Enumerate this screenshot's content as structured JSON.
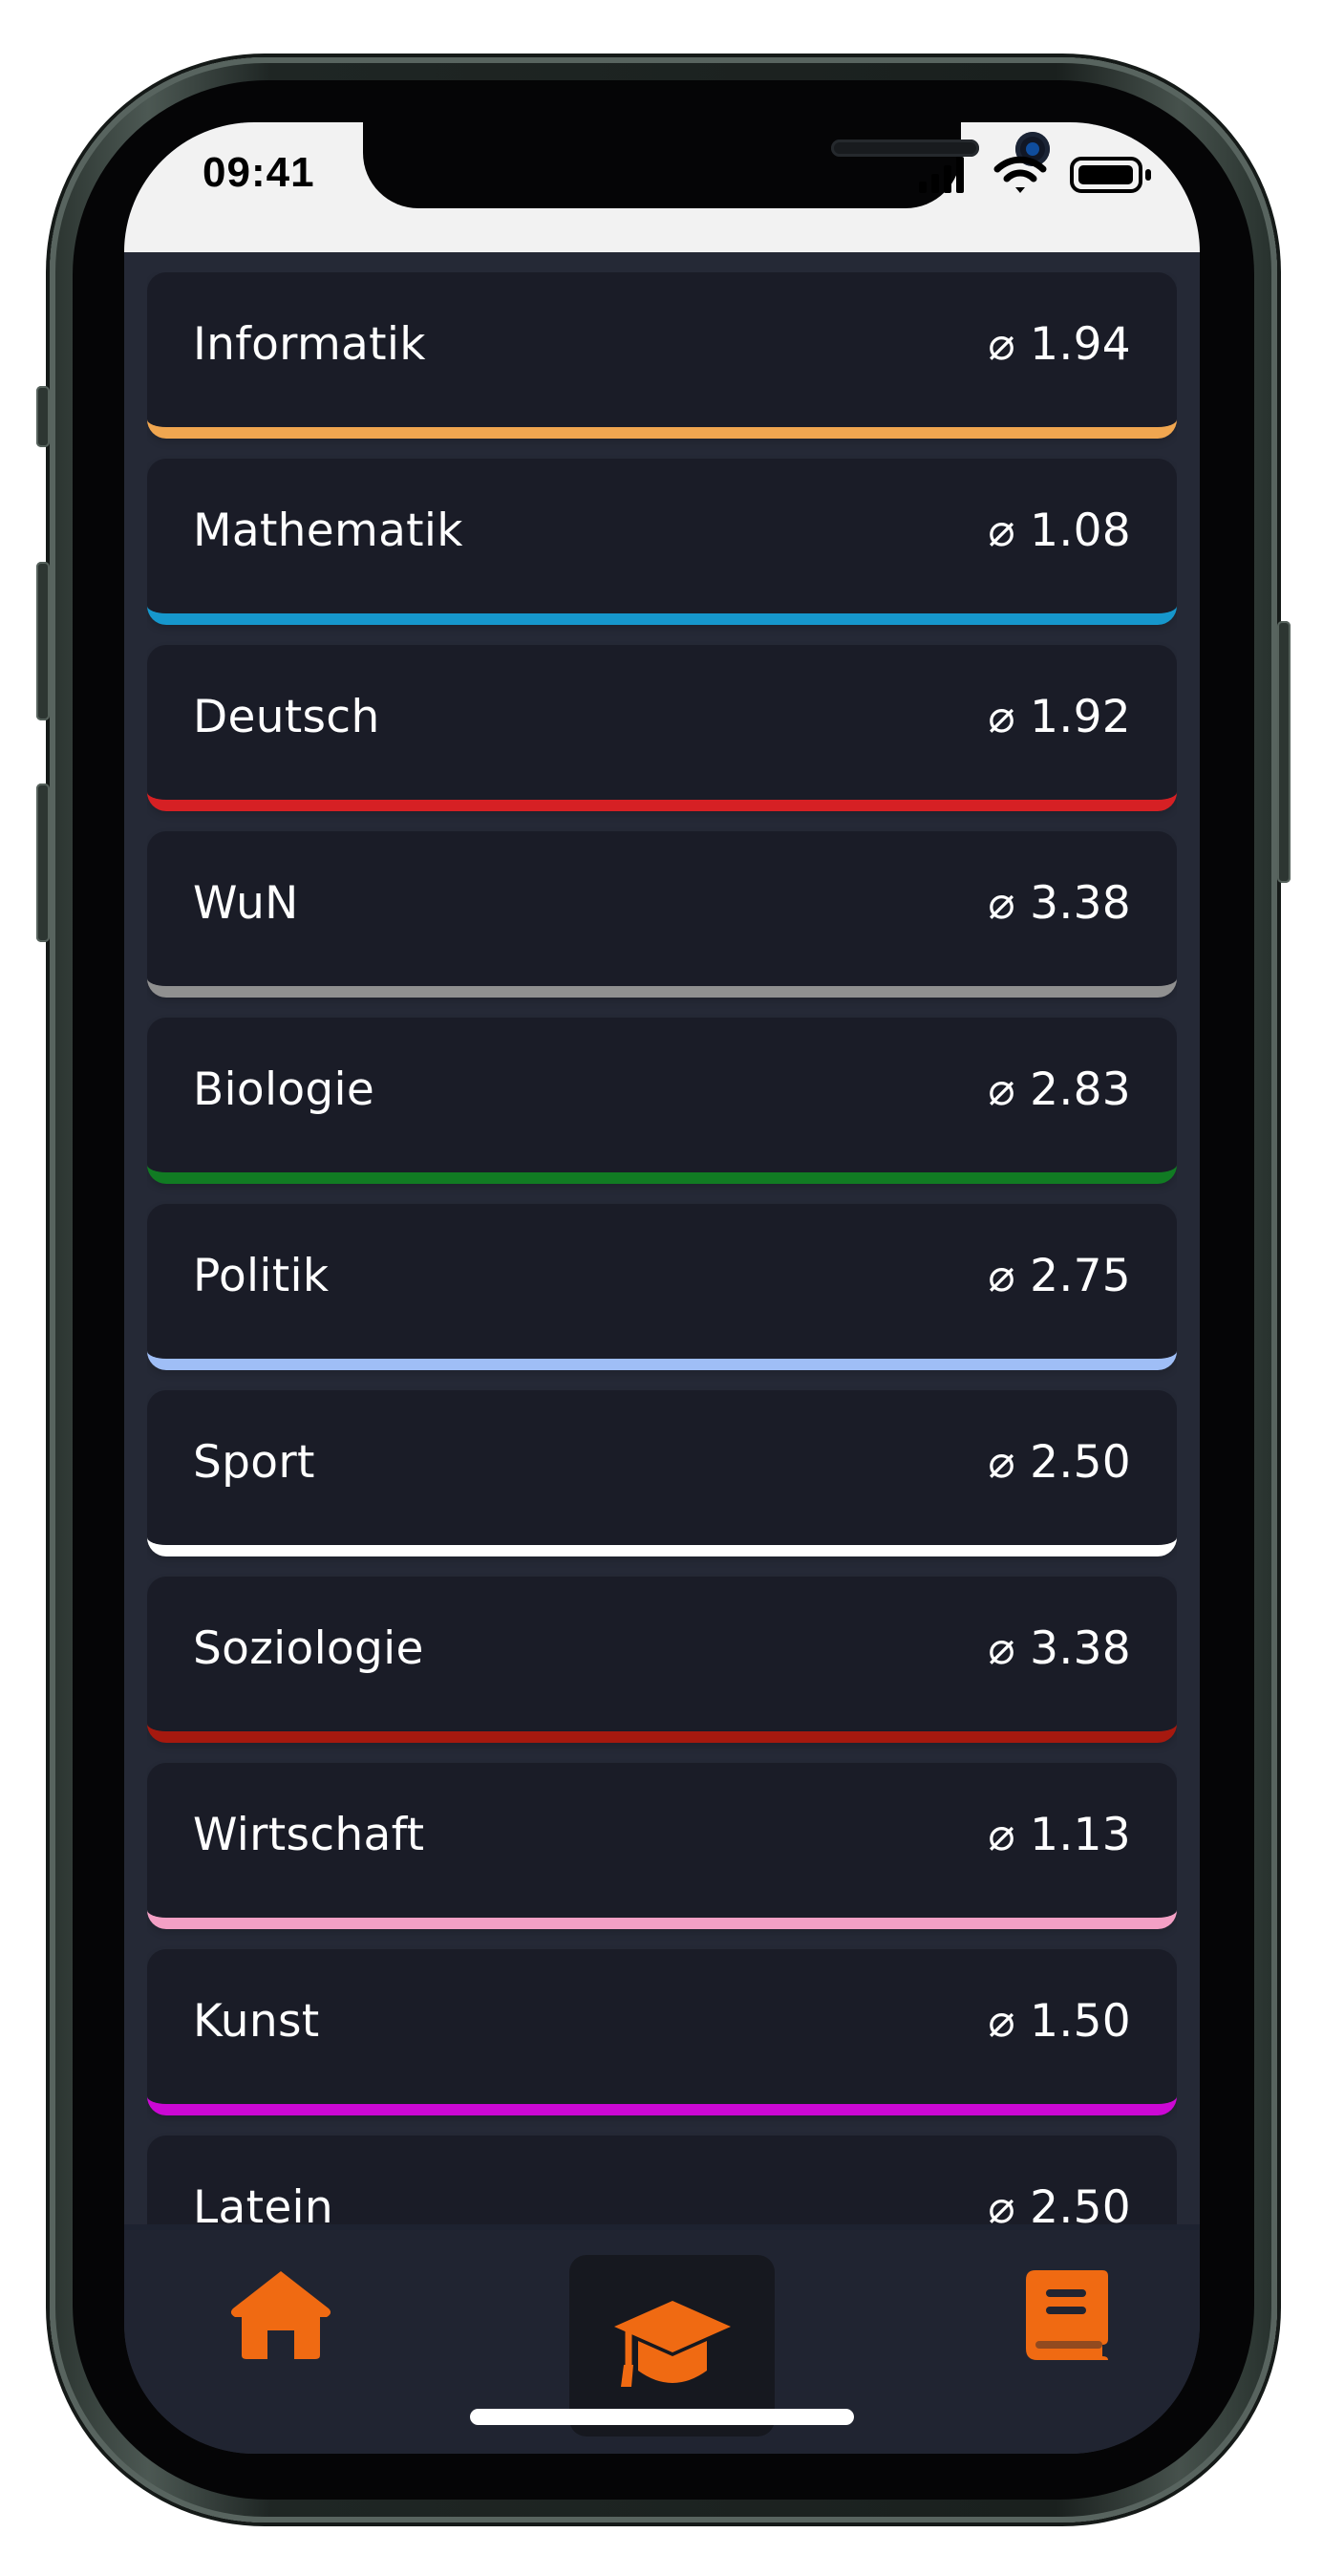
{
  "status_bar": {
    "time": "09:41",
    "signal_icon": "cellular-signal-icon",
    "wifi_icon": "wifi-icon",
    "battery_icon": "battery-icon"
  },
  "subjects": [
    {
      "name": "Informatik",
      "grade": "⌀ 1.94",
      "color": "#f0a650"
    },
    {
      "name": "Mathematik",
      "grade": "⌀ 1.08",
      "color": "#1697cc"
    },
    {
      "name": "Deutsch",
      "grade": "⌀ 1.92",
      "color": "#d62024"
    },
    {
      "name": "WuN",
      "grade": "⌀ 3.38",
      "color": "#909090"
    },
    {
      "name": "Biologie",
      "grade": "⌀ 2.83",
      "color": "#117b23"
    },
    {
      "name": "Politik",
      "grade": "⌀ 2.75",
      "color": "#9fbef6"
    },
    {
      "name": "Sport",
      "grade": "⌀ 2.50",
      "color": "#ffffff"
    },
    {
      "name": "Soziologie",
      "grade": "⌀ 3.38",
      "color": "#a6190f"
    },
    {
      "name": "Wirtschaft",
      "grade": "⌀ 1.13",
      "color": "#f3a0c5"
    },
    {
      "name": "Kunst",
      "grade": "⌀ 1.50",
      "color": "#cc08d4"
    },
    {
      "name": "Latein",
      "grade": "⌀ 2.50",
      "color": "#1a1c27"
    }
  ],
  "navigation": {
    "items": [
      {
        "icon": "home-icon"
      },
      {
        "icon": "graduation-cap-icon",
        "active": true
      },
      {
        "icon": "book-icon"
      }
    ],
    "accent_color": "#f06a12"
  }
}
